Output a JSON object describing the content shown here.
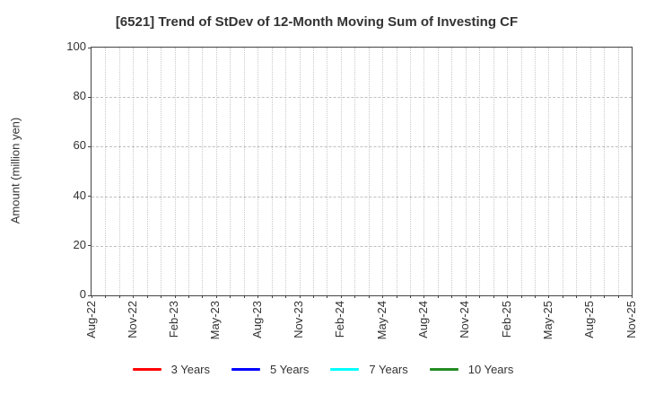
{
  "chart_data": {
    "type": "line",
    "title": "[6521]  Trend of StDev of 12-Month Moving Sum of Investing CF",
    "ylabel": "Amount (million yen)",
    "ylim": [
      0,
      100
    ],
    "yticks": [
      0,
      20,
      40,
      60,
      80,
      100
    ],
    "x_tick_labels": [
      "Aug-22",
      "Nov-22",
      "Feb-23",
      "May-23",
      "Aug-23",
      "Nov-23",
      "Feb-24",
      "May-24",
      "Aug-24",
      "Nov-24",
      "Feb-25",
      "May-25",
      "Aug-25",
      "Nov-25"
    ],
    "x_total_months": 40,
    "x_label_every_months": 3,
    "grid": true,
    "grid_style": {
      "vertical": "dotted",
      "horizontal": "dashed"
    },
    "legend_position": "bottom",
    "series": [
      {
        "name": "3 Years",
        "color": "#ff0000",
        "values": []
      },
      {
        "name": "5 Years",
        "color": "#0000ff",
        "values": []
      },
      {
        "name": "7 Years",
        "color": "#00ffff",
        "values": []
      },
      {
        "name": "10 Years",
        "color": "#228b22",
        "values": []
      }
    ],
    "plot_content": "empty - no data lines plotted"
  }
}
